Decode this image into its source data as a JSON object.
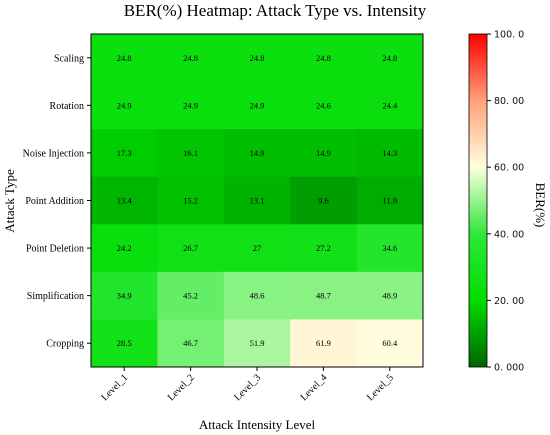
{
  "chart_data": {
    "type": "heatmap",
    "title": "BER(%)  Heatmap: Attack Type vs. Intensity",
    "xlabel": "Attack Intensity Level",
    "ylabel": "Attack Type",
    "x_categories": [
      "Level_1",
      "Level_2",
      "Level_3",
      "Level_4",
      "Level_5"
    ],
    "y_categories": [
      "Scaling",
      "Rotation",
      "Noise Injection",
      "Point Addition",
      "Point Deletion",
      "Simplification",
      "Cropping"
    ],
    "values": [
      [
        24.8,
        24.8,
        24.8,
        24.8,
        24.8
      ],
      [
        24.9,
        24.9,
        24.9,
        24.6,
        24.4
      ],
      [
        17.3,
        16.1,
        14.9,
        14.9,
        14.3
      ],
      [
        13.4,
        15.2,
        13.1,
        9.6,
        11.9
      ],
      [
        24.2,
        26.7,
        27,
        27.2,
        34.6
      ],
      [
        34.9,
        45.2,
        48.6,
        48.7,
        48.9
      ],
      [
        28.5,
        46.7,
        51.9,
        61.9,
        60.4
      ]
    ],
    "colorbar": {
      "label": "BER(%)",
      "range": [
        0,
        100
      ],
      "tick_values": [
        0,
        20,
        40,
        60,
        80,
        100
      ],
      "tick_labels": [
        "0. 000",
        "20. 00",
        "40. 00",
        "60. 00",
        "80. 00",
        "100. 0"
      ],
      "colors": [
        "#006400",
        "#00dd00",
        "#2ee83c",
        "#ffffe0",
        "#ffa07a",
        "#ff0000"
      ]
    }
  }
}
